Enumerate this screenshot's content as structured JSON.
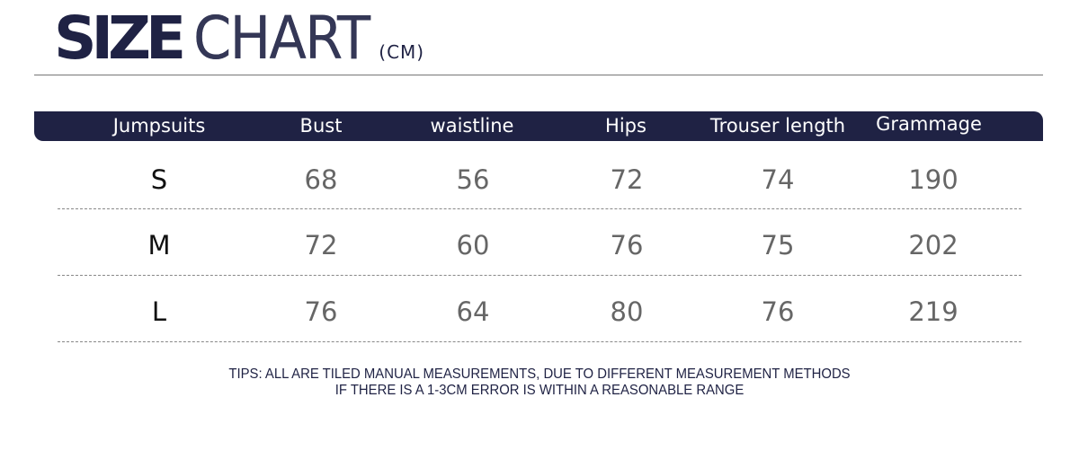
{
  "title": {
    "bold": "SIZE",
    "light": "CHART",
    "unit": "(CM)"
  },
  "colors": {
    "header_bg": "#1f2244",
    "header_text": "#ffffff",
    "value_text": "#666666"
  },
  "table": {
    "columns": [
      "Jumpsuits",
      "Bust",
      "waistline",
      "Hips",
      "Trouser length",
      "Grammage"
    ],
    "rows": [
      [
        "S",
        "68",
        "56",
        "72",
        "74",
        "190"
      ],
      [
        "M",
        "72",
        "60",
        "76",
        "75",
        "202"
      ],
      [
        "L",
        "76",
        "64",
        "80",
        "76",
        "219"
      ]
    ]
  },
  "tips": {
    "line1": "TIPS: ALL ARE TILED MANUAL MEASUREMENTS, DUE TO DIFFERENT MEASUREMENT METHODS",
    "line2": "IF THERE IS A 1-3CM ERROR IS WITHIN A REASONABLE RANGE"
  }
}
